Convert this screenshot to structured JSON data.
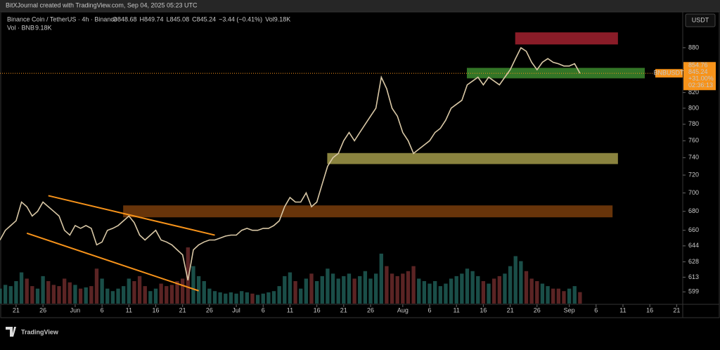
{
  "header": "BitXJournal created with TradingView.com, Sep 04, 2025 05:23 UTC",
  "footer": "TradingView",
  "chart_data": {
    "type": "line",
    "title": "Binance Coin / TetherUS · 4h · Binance",
    "ohlc": [
      "O848.68",
      "H849.74",
      "L845.08",
      "C845.24",
      "−3.44 (−0.41%)",
      "Vol9.18K"
    ],
    "volume_title": "Vol · BNB",
    "volume_label": "9.18K",
    "currency": "USDT",
    "symbol_tag": "BNBUSDT",
    "price_tag": [
      "854.76",
      "845.24",
      "+31.00%",
      "02:36:13"
    ],
    "last_price": 845.24,
    "log_scale": true,
    "color": "#d9c8a6",
    "last_price_color": "#f7931a",
    "x": [
      "2025-05-18",
      "2025-05-19",
      "2025-05-20",
      "2025-05-21",
      "2025-05-22",
      "2025-05-23",
      "2025-05-24",
      "2025-05-25",
      "2025-05-26",
      "2025-05-27",
      "2025-05-28",
      "2025-05-29",
      "2025-05-30",
      "2025-05-31",
      "2025-06-01",
      "2025-06-02",
      "2025-06-03",
      "2025-06-04",
      "2025-06-05",
      "2025-06-06",
      "2025-06-07",
      "2025-06-08",
      "2025-06-09",
      "2025-06-10",
      "2025-06-11",
      "2025-06-12",
      "2025-06-13",
      "2025-06-14",
      "2025-06-15",
      "2025-06-16",
      "2025-06-17",
      "2025-06-18",
      "2025-06-19",
      "2025-06-20",
      "2025-06-21",
      "2025-06-22",
      "2025-06-23",
      "2025-06-24",
      "2025-06-25",
      "2025-06-26",
      "2025-06-27",
      "2025-06-28",
      "2025-06-29",
      "2025-06-30",
      "2025-07-01",
      "2025-07-02",
      "2025-07-03",
      "2025-07-04",
      "2025-07-05",
      "2025-07-06",
      "2025-07-07",
      "2025-07-08",
      "2025-07-09",
      "2025-07-10",
      "2025-07-11",
      "2025-07-12",
      "2025-07-13",
      "2025-07-14",
      "2025-07-15",
      "2025-07-16",
      "2025-07-17",
      "2025-07-18",
      "2025-07-19",
      "2025-07-20",
      "2025-07-21",
      "2025-07-22",
      "2025-07-23",
      "2025-07-24",
      "2025-07-25",
      "2025-07-26",
      "2025-07-27",
      "2025-07-28",
      "2025-07-29",
      "2025-07-30",
      "2025-07-31",
      "2025-08-01",
      "2025-08-02",
      "2025-08-03",
      "2025-08-04",
      "2025-08-05",
      "2025-08-06",
      "2025-08-07",
      "2025-08-08",
      "2025-08-09",
      "2025-08-10",
      "2025-08-11",
      "2025-08-12",
      "2025-08-13",
      "2025-08-14",
      "2025-08-15",
      "2025-08-16",
      "2025-08-17",
      "2025-08-18",
      "2025-08-19",
      "2025-08-20",
      "2025-08-21",
      "2025-08-22",
      "2025-08-23",
      "2025-08-24",
      "2025-08-25",
      "2025-08-26",
      "2025-08-27",
      "2025-08-28",
      "2025-08-29",
      "2025-08-30",
      "2025-08-31",
      "2025-09-01",
      "2025-09-02",
      "2025-09-03"
    ],
    "values": [
      650,
      660,
      665,
      670,
      690,
      685,
      675,
      680,
      690,
      685,
      680,
      675,
      660,
      655,
      665,
      662,
      665,
      662,
      645,
      648,
      660,
      662,
      665,
      670,
      675,
      668,
      655,
      650,
      655,
      660,
      650,
      648,
      645,
      640,
      635,
      610,
      640,
      645,
      648,
      650,
      650,
      652,
      654,
      655,
      655,
      660,
      662,
      660,
      660,
      662,
      662,
      665,
      670,
      685,
      695,
      690,
      690,
      700,
      685,
      690,
      710,
      730,
      740,
      745,
      760,
      770,
      760,
      770,
      780,
      790,
      800,
      840,
      825,
      800,
      790,
      770,
      760,
      745,
      750,
      755,
      760,
      770,
      775,
      785,
      800,
      805,
      810,
      830,
      835,
      840,
      830,
      840,
      835,
      830,
      840,
      850,
      865,
      880,
      875,
      860,
      850,
      860,
      865,
      860,
      858,
      855,
      855,
      858,
      845.24
    ],
    "volume": [
      12,
      15,
      14,
      18,
      25,
      20,
      14,
      12,
      22,
      18,
      15,
      14,
      20,
      17,
      15,
      12,
      13,
      14,
      28,
      20,
      12,
      10,
      12,
      14,
      20,
      18,
      22,
      14,
      10,
      12,
      16,
      14,
      15,
      18,
      20,
      45,
      30,
      22,
      18,
      12,
      10,
      9,
      8,
      9,
      8,
      10,
      9,
      8,
      7,
      8,
      9,
      10,
      14,
      22,
      25,
      18,
      12,
      20,
      24,
      18,
      22,
      28,
      24,
      20,
      22,
      24,
      20,
      22,
      26,
      20,
      24,
      40,
      30,
      24,
      22,
      24,
      26,
      30,
      20,
      18,
      16,
      18,
      14,
      16,
      20,
      22,
      24,
      28,
      26,
      22,
      18,
      16,
      20,
      22,
      24,
      30,
      38,
      34,
      26,
      20,
      18,
      16,
      14,
      12,
      12,
      10,
      12,
      14,
      9.18
    ],
    "xlim": [
      "2025-05-18",
      "2025-09-22"
    ],
    "ylim": [
      588,
      931
    ],
    "yticks": [
      599,
      613,
      628,
      644,
      660,
      680,
      700,
      720,
      740,
      760,
      780,
      800,
      820,
      880
    ],
    "xticks": [
      {
        "value": "2025-05-21",
        "label": "21"
      },
      {
        "value": "2025-05-26",
        "label": "26"
      },
      {
        "value": "2025-06-01",
        "label": "Jun"
      },
      {
        "value": "2025-06-06",
        "label": "6"
      },
      {
        "value": "2025-06-11",
        "label": "11"
      },
      {
        "value": "2025-06-16",
        "label": "16"
      },
      {
        "value": "2025-06-21",
        "label": "21"
      },
      {
        "value": "2025-06-26",
        "label": "26"
      },
      {
        "value": "2025-07-01",
        "label": "Jul"
      },
      {
        "value": "2025-07-06",
        "label": "6"
      },
      {
        "value": "2025-07-11",
        "label": "11"
      },
      {
        "value": "2025-07-16",
        "label": "16"
      },
      {
        "value": "2025-07-21",
        "label": "21"
      },
      {
        "value": "2025-07-26",
        "label": "26"
      },
      {
        "value": "2025-08-01",
        "label": "Aug"
      },
      {
        "value": "2025-08-06",
        "label": "6"
      },
      {
        "value": "2025-08-11",
        "label": "11"
      },
      {
        "value": "2025-08-16",
        "label": "16"
      },
      {
        "value": "2025-08-21",
        "label": "21"
      },
      {
        "value": "2025-08-26",
        "label": "26"
      },
      {
        "value": "2025-09-01",
        "label": "Sep"
      },
      {
        "value": "2025-09-06",
        "label": "6"
      },
      {
        "value": "2025-09-11",
        "label": "11"
      },
      {
        "value": "2025-09-16",
        "label": "16"
      },
      {
        "value": "2025-09-21",
        "label": "21"
      }
    ],
    "zones": [
      {
        "from": "2025-08-22",
        "to": "2025-09-10",
        "low": 885,
        "high": 901,
        "color": "#a3222f"
      },
      {
        "from": "2025-08-13",
        "to": "2025-09-15",
        "low": 839,
        "high": 852,
        "color": "#3d8a2e"
      },
      {
        "from": "2025-07-18",
        "to": "2025-09-10",
        "low": 733,
        "high": 745,
        "color": "#a39a4a"
      },
      {
        "from": "2025-06-10",
        "to": "2025-09-09",
        "low": 674,
        "high": 686,
        "color": "#7a3e0c"
      }
    ],
    "lines": [
      {
        "x": [
          "2025-05-27",
          "2025-06-27"
        ],
        "y": [
          697,
          655
        ],
        "color": "#f7931a"
      },
      {
        "x": [
          "2025-05-23",
          "2025-06-24"
        ],
        "y": [
          657,
          600
        ],
        "color": "#f7931a"
      }
    ]
  }
}
